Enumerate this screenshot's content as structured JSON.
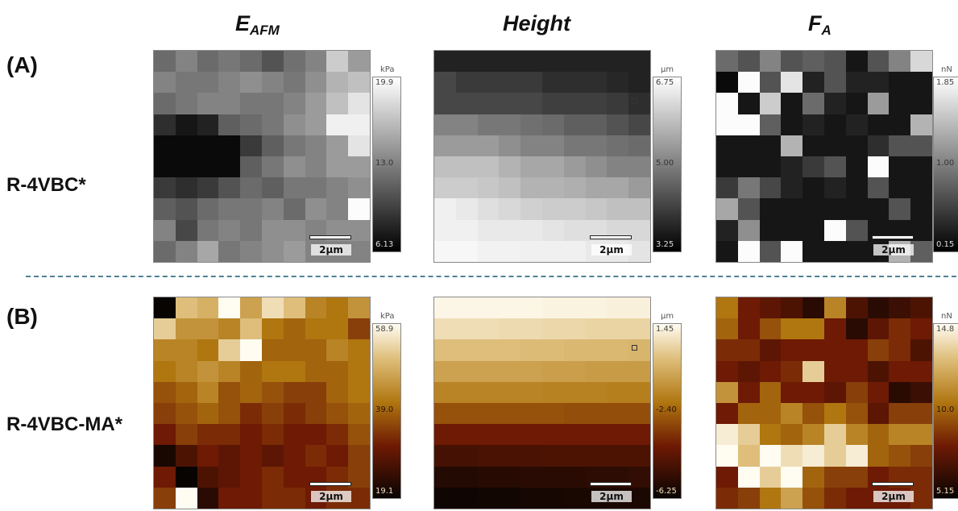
{
  "columns": [
    {
      "main": "E",
      "sub": "AFM"
    },
    {
      "main": "Height",
      "sub": ""
    },
    {
      "main": "F",
      "sub": "A"
    }
  ],
  "rows": [
    {
      "letter": "(A)",
      "sample": "R-4VBC*",
      "colormap": "gray"
    },
    {
      "letter": "(B)",
      "sample": "R-4VBC-MA*",
      "colormap": "gold"
    }
  ],
  "scale_bar_label": "2µm",
  "panels": [
    [
      {
        "unit": "kPa",
        "max": "19.9",
        "mid": "13.0",
        "min": "6.13",
        "grid": [
          [
            0.4,
            0.5,
            0.4,
            0.45,
            0.4,
            0.3,
            0.42,
            0.5,
            0.8,
            0.6
          ],
          [
            0.5,
            0.45,
            0.45,
            0.5,
            0.55,
            0.5,
            0.45,
            0.55,
            0.7,
            0.75
          ],
          [
            0.4,
            0.45,
            0.5,
            0.5,
            0.45,
            0.45,
            0.5,
            0.6,
            0.75,
            0.9
          ],
          [
            0.15,
            0.05,
            0.1,
            0.35,
            0.4,
            0.45,
            0.55,
            0.6,
            0.95,
            0.95
          ],
          [
            0.0,
            0.0,
            0.0,
            0.0,
            0.2,
            0.35,
            0.45,
            0.5,
            0.6,
            0.9
          ],
          [
            0.0,
            0.0,
            0.0,
            0.0,
            0.35,
            0.45,
            0.55,
            0.5,
            0.6,
            0.6
          ],
          [
            0.2,
            0.15,
            0.2,
            0.3,
            0.4,
            0.35,
            0.45,
            0.45,
            0.5,
            0.55
          ],
          [
            0.35,
            0.3,
            0.4,
            0.45,
            0.45,
            0.5,
            0.4,
            0.55,
            0.5,
            1.0
          ],
          [
            0.5,
            0.25,
            0.45,
            0.5,
            0.45,
            0.55,
            0.55,
            0.5,
            0.55,
            0.55
          ],
          [
            0.4,
            0.5,
            0.65,
            0.45,
            0.5,
            0.55,
            0.6,
            0.5,
            0.5,
            0.5
          ]
        ]
      },
      {
        "unit": "µm",
        "max": "6.75",
        "mid": "5.00",
        "min": "3.25",
        "marker": true,
        "grid": [
          [
            0.1,
            0.1,
            0.1,
            0.1,
            0.1,
            0.1,
            0.1,
            0.1,
            0.1,
            0.1
          ],
          [
            0.25,
            0.2,
            0.2,
            0.2,
            0.2,
            0.15,
            0.15,
            0.15,
            0.12,
            0.1
          ],
          [
            0.25,
            0.25,
            0.25,
            0.25,
            0.25,
            0.22,
            0.22,
            0.22,
            0.2,
            0.15
          ],
          [
            0.5,
            0.5,
            0.45,
            0.45,
            0.42,
            0.4,
            0.35,
            0.35,
            0.3,
            0.25
          ],
          [
            0.6,
            0.6,
            0.6,
            0.55,
            0.5,
            0.5,
            0.45,
            0.45,
            0.42,
            0.4
          ],
          [
            0.75,
            0.75,
            0.75,
            0.7,
            0.65,
            0.65,
            0.6,
            0.55,
            0.5,
            0.5
          ],
          [
            0.8,
            0.8,
            0.78,
            0.75,
            0.7,
            0.7,
            0.68,
            0.65,
            0.65,
            0.6
          ],
          [
            0.95,
            0.92,
            0.88,
            0.85,
            0.82,
            0.8,
            0.8,
            0.78,
            0.75,
            0.75
          ],
          [
            0.95,
            0.95,
            0.92,
            0.92,
            0.92,
            0.9,
            0.88,
            0.88,
            0.85,
            0.85
          ],
          [
            0.98,
            0.98,
            0.96,
            0.96,
            0.95,
            0.95,
            0.95,
            0.92,
            0.92,
            0.9
          ]
        ]
      },
      {
        "unit": "nN",
        "max": "1.85",
        "mid": "1.00",
        "min": "0.15",
        "grid": [
          [
            0.4,
            0.3,
            0.5,
            0.3,
            0.35,
            0.3,
            0.05,
            0.3,
            0.5,
            0.85
          ],
          [
            0.0,
            1.0,
            0.3,
            0.9,
            0.1,
            0.3,
            0.1,
            0.1,
            0.05,
            0.05
          ],
          [
            1.0,
            0.05,
            0.8,
            0.05,
            0.4,
            0.1,
            0.05,
            0.6,
            0.05,
            0.05
          ],
          [
            1.0,
            1.0,
            0.35,
            0.05,
            0.1,
            0.05,
            0.1,
            0.05,
            0.05,
            0.7
          ],
          [
            0.05,
            0.05,
            0.05,
            0.7,
            0.05,
            0.05,
            0.05,
            0.15,
            0.3,
            0.3
          ],
          [
            0.05,
            0.05,
            0.05,
            0.1,
            0.2,
            0.3,
            0.05,
            1.0,
            0.05,
            0.05
          ],
          [
            0.2,
            0.45,
            0.25,
            0.1,
            0.05,
            0.1,
            0.05,
            0.3,
            0.05,
            0.05
          ],
          [
            0.65,
            0.3,
            0.05,
            0.05,
            0.05,
            0.05,
            0.05,
            0.05,
            0.3,
            0.05
          ],
          [
            0.1,
            0.55,
            0.05,
            0.05,
            0.05,
            1.0,
            0.3,
            0.05,
            0.05,
            0.05
          ],
          [
            0.05,
            1.0,
            0.3,
            1.0,
            0.05,
            0.05,
            0.05,
            0.05,
            0.7,
            0.35
          ]
        ]
      }
    ],
    [
      {
        "unit": "kPa",
        "max": "58.9",
        "mid": "39.0",
        "min": "19.1",
        "grid": [
          [
            0.0,
            0.8,
            0.75,
            1.0,
            0.7,
            0.9,
            0.8,
            0.6,
            0.55,
            0.65
          ],
          [
            0.85,
            0.65,
            0.65,
            0.6,
            0.8,
            0.55,
            0.5,
            0.55,
            0.55,
            0.4
          ],
          [
            0.6,
            0.6,
            0.55,
            0.85,
            1.0,
            0.5,
            0.5,
            0.5,
            0.6,
            0.55
          ],
          [
            0.55,
            0.6,
            0.65,
            0.6,
            0.5,
            0.55,
            0.55,
            0.5,
            0.5,
            0.55
          ],
          [
            0.45,
            0.5,
            0.6,
            0.45,
            0.5,
            0.45,
            0.4,
            0.4,
            0.5,
            0.55
          ],
          [
            0.4,
            0.45,
            0.5,
            0.45,
            0.35,
            0.4,
            0.35,
            0.4,
            0.45,
            0.5
          ],
          [
            0.3,
            0.4,
            0.35,
            0.35,
            0.3,
            0.35,
            0.3,
            0.3,
            0.35,
            0.45
          ],
          [
            0.05,
            0.2,
            0.3,
            0.25,
            0.3,
            0.25,
            0.3,
            0.35,
            0.3,
            0.4
          ],
          [
            0.3,
            0.0,
            0.2,
            0.25,
            0.3,
            0.35,
            0.3,
            0.3,
            0.35,
            0.4
          ],
          [
            0.4,
            1.0,
            0.1,
            0.3,
            0.3,
            0.35,
            0.35,
            0.3,
            0.35,
            0.35
          ]
        ]
      },
      {
        "unit": "µm",
        "max": "1.45",
        "mid": "-2.40",
        "min": "-6.25",
        "marker": true,
        "grid": [
          [
            0.98,
            0.98,
            0.98,
            0.98,
            0.98,
            0.97,
            0.97,
            0.97,
            0.96,
            0.96
          ],
          [
            0.9,
            0.9,
            0.9,
            0.89,
            0.89,
            0.88,
            0.88,
            0.87,
            0.87,
            0.87
          ],
          [
            0.8,
            0.8,
            0.8,
            0.8,
            0.79,
            0.79,
            0.78,
            0.78,
            0.78,
            0.77
          ],
          [
            0.7,
            0.7,
            0.7,
            0.7,
            0.7,
            0.69,
            0.69,
            0.68,
            0.68,
            0.68
          ],
          [
            0.6,
            0.6,
            0.6,
            0.6,
            0.6,
            0.59,
            0.59,
            0.59,
            0.58,
            0.58
          ],
          [
            0.45,
            0.45,
            0.45,
            0.45,
            0.45,
            0.45,
            0.44,
            0.44,
            0.44,
            0.44
          ],
          [
            0.3,
            0.3,
            0.3,
            0.3,
            0.3,
            0.3,
            0.3,
            0.3,
            0.3,
            0.3
          ],
          [
            0.18,
            0.18,
            0.19,
            0.19,
            0.19,
            0.2,
            0.2,
            0.2,
            0.2,
            0.2
          ],
          [
            0.08,
            0.08,
            0.09,
            0.09,
            0.1,
            0.1,
            0.1,
            0.11,
            0.11,
            0.12
          ],
          [
            0.02,
            0.02,
            0.03,
            0.03,
            0.04,
            0.04,
            0.05,
            0.05,
            0.06,
            0.06
          ]
        ]
      },
      {
        "unit": "nN",
        "max": "14.8",
        "mid": "10.0",
        "min": "5.15",
        "grid": [
          [
            0.55,
            0.3,
            0.25,
            0.2,
            0.1,
            0.6,
            0.2,
            0.1,
            0.15,
            0.2
          ],
          [
            0.5,
            0.3,
            0.45,
            0.55,
            0.55,
            0.3,
            0.1,
            0.25,
            0.35,
            0.3
          ],
          [
            0.35,
            0.35,
            0.25,
            0.3,
            0.3,
            0.3,
            0.3,
            0.4,
            0.35,
            0.2
          ],
          [
            0.3,
            0.25,
            0.3,
            0.35,
            0.85,
            0.3,
            0.3,
            0.2,
            0.3,
            0.3
          ],
          [
            0.65,
            0.3,
            0.5,
            0.3,
            0.3,
            0.25,
            0.4,
            0.3,
            0.1,
            0.15
          ],
          [
            0.3,
            0.5,
            0.5,
            0.6,
            0.45,
            0.55,
            0.45,
            0.25,
            0.4,
            0.4
          ],
          [
            0.95,
            0.85,
            0.55,
            0.5,
            0.6,
            0.85,
            0.6,
            0.5,
            0.6,
            0.6
          ],
          [
            1.0,
            0.8,
            1.0,
            0.9,
            0.95,
            0.85,
            0.95,
            0.5,
            0.45,
            0.4
          ],
          [
            0.3,
            1.0,
            0.85,
            1.0,
            0.5,
            0.4,
            0.4,
            0.3,
            0.35,
            0.35
          ],
          [
            0.35,
            0.4,
            0.55,
            0.7,
            0.45,
            0.35,
            0.3,
            0.3,
            0.3,
            0.35
          ]
        ]
      }
    ]
  ]
}
